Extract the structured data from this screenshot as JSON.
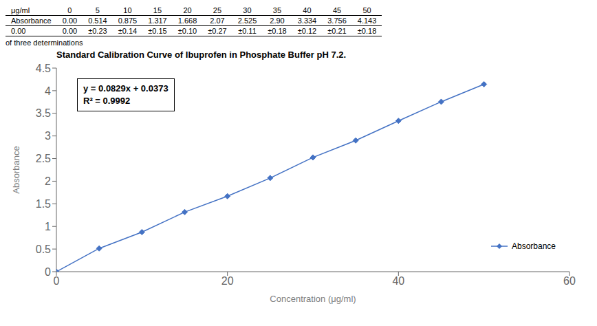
{
  "chart_data": {
    "type": "line",
    "title": "Standard Calibration Curve of Ibuprofen in Phosphate Buffer pH 7.2.",
    "x_label": "Concentration (μg/ml)",
    "y_label": "Absorbance",
    "x": [
      0,
      5,
      10,
      15,
      20,
      25,
      30,
      35,
      40,
      45,
      50
    ],
    "series": [
      {
        "name": "Absorbance",
        "color": "#4472C4",
        "marker": "diamond",
        "values": [
          0.0,
          0.514,
          0.875,
          1.317,
          1.668,
          2.07,
          2.525,
          2.9,
          3.334,
          3.756,
          4.143
        ]
      }
    ],
    "xlim": [
      0,
      60
    ],
    "xticks": [
      0,
      20,
      40,
      60
    ],
    "ylim": [
      0,
      4.5
    ],
    "yticks": [
      0,
      0.5,
      1,
      1.5,
      2,
      2.5,
      3,
      3.5,
      4,
      4.5
    ],
    "grid": false,
    "legend": "lower right",
    "annotations": [
      "y = 0.0829x + 0.0373",
      "R² = 0.9992"
    ],
    "table": {
      "row_labels": [
        "μg/ml",
        "Absorbance",
        "0.00"
      ],
      "header": [
        "0",
        "5",
        "10",
        "15",
        "20",
        "25",
        "30",
        "35",
        "40",
        "45",
        "50"
      ],
      "rows": [
        [
          "0.00",
          "0.514",
          "0.875",
          "1.317",
          "1.668",
          "2.07",
          "2.525",
          "2.90",
          "3.334",
          "3.756",
          "4.143"
        ],
        [
          "0.00",
          "±0.23",
          "±0.14",
          "±0.15",
          "±0.10",
          "±0.27",
          "±0.11",
          "±0.18",
          "±0.12",
          "±0.21",
          "±0.18"
        ]
      ]
    },
    "footnote": "of three determinations"
  }
}
